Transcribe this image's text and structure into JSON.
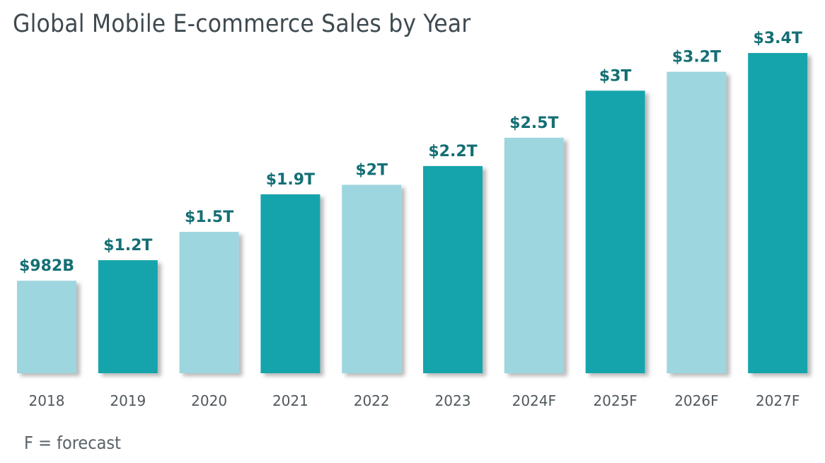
{
  "chart_data": {
    "type": "bar",
    "title": "Global Mobile E-commerce Sales by Year",
    "xlabel": "",
    "ylabel": "",
    "ylim": [
      0,
      3.4
    ],
    "unit": "trillion USD",
    "grid": false,
    "categories": [
      "2018",
      "2019",
      "2020",
      "2021",
      "2022",
      "2023",
      "2024F",
      "2025F",
      "2026F",
      "2027F"
    ],
    "values": [
      0.982,
      1.2,
      1.5,
      1.9,
      2.0,
      2.2,
      2.5,
      3.0,
      3.2,
      3.4
    ],
    "data_labels": [
      "$982B",
      "$1.2T",
      "$1.5T",
      "$1.9T",
      "$2T",
      "$2.2T",
      "$2.5T",
      "$3T",
      "$3.2T",
      "$3.4T"
    ],
    "bar_colors": [
      "#9dd6de",
      "#17a4ac",
      "#9dd6de",
      "#17a4ac",
      "#9dd6de",
      "#17a4ac",
      "#9dd6de",
      "#17a4ac",
      "#9dd6de",
      "#17a4ac"
    ],
    "footnote": "F = forecast"
  },
  "colors": {
    "light_bar": "#9dd6de",
    "dark_bar": "#17a4ac",
    "value_label": "#146f74",
    "title": "#3f4a50"
  }
}
